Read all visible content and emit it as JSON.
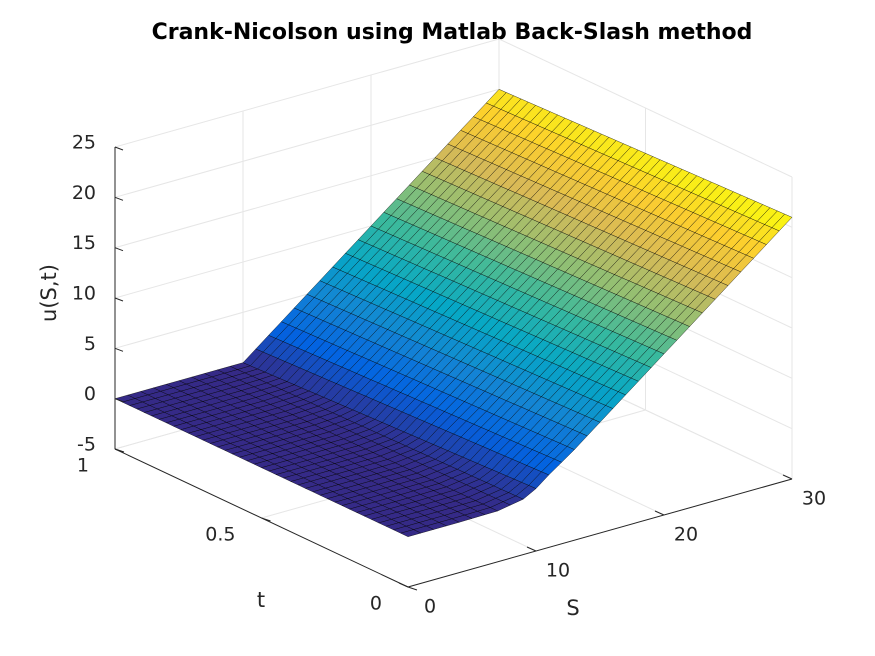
{
  "chart_data": {
    "type": "surface",
    "title": "Crank-Nicolson using Matlab Back-Slash method",
    "xlabel": "S",
    "ylabel": "t",
    "zlabel": "u(S,t)",
    "x_range": [
      0,
      30
    ],
    "y_range": [
      0,
      1
    ],
    "z_range": [
      -5,
      25
    ],
    "x_ticks": [
      "0",
      "10",
      "20",
      "30"
    ],
    "y_ticks": [
      "0",
      "0.5",
      "1"
    ],
    "z_ticks": [
      "-5",
      "0",
      "5",
      "10",
      "15",
      "20",
      "25"
    ],
    "grid": true,
    "colormap": "parula",
    "strike_K": 10,
    "mesh": {
      "s_steps": 30,
      "t_steps": 40
    },
    "profile_at_t0": [
      {
        "S": 0,
        "u": 0.0
      },
      {
        "S": 4,
        "u": 0.0
      },
      {
        "S": 7,
        "u": 0.05
      },
      {
        "S": 9,
        "u": 0.5
      },
      {
        "S": 10,
        "u": 1.2
      },
      {
        "S": 11,
        "u": 2.2
      },
      {
        "S": 13,
        "u": 4.0
      },
      {
        "S": 15,
        "u": 6.0
      },
      {
        "S": 20,
        "u": 11.0
      },
      {
        "S": 25,
        "u": 16.0
      },
      {
        "S": 30,
        "u": 21.0
      }
    ],
    "profile_at_t1": [
      {
        "S": 0,
        "u": 0.0
      },
      {
        "S": 10,
        "u": 0.0
      },
      {
        "S": 15,
        "u": 5.0
      },
      {
        "S": 20,
        "u": 10.0
      },
      {
        "S": 25,
        "u": 15.0
      },
      {
        "S": 30,
        "u": 20.0
      }
    ]
  },
  "colors": {
    "grid": "#e6e6e6",
    "axis": "#262626",
    "edge": "#000000",
    "parula": [
      "#352a87",
      "#0363e1",
      "#1485d4",
      "#06a7c6",
      "#38b99e",
      "#92bf73",
      "#d9ba56",
      "#fcce2e",
      "#f9fb0e"
    ]
  }
}
